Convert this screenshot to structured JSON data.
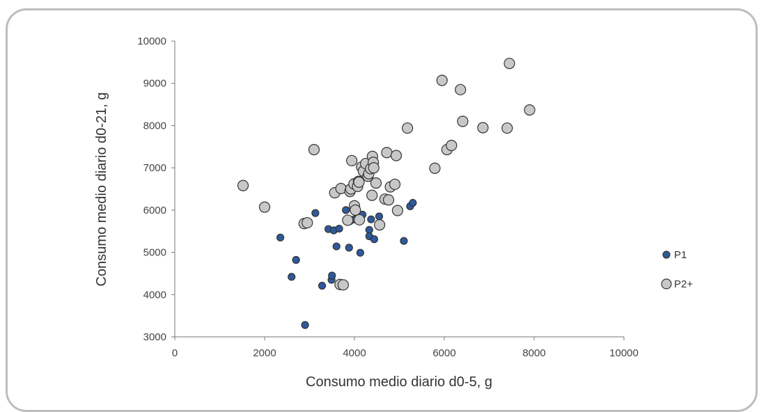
{
  "chart_data": {
    "type": "scatter",
    "title": "",
    "xlabel": "Consumo medio diario d0-5, g",
    "ylabel": "Consumo medio diario d0-21, g",
    "xlim": [
      0,
      10000
    ],
    "ylim": [
      3000,
      10000
    ],
    "xticks": [
      "0",
      "2000",
      "4000",
      "6000",
      "8000",
      "10000"
    ],
    "yticks": [
      "3000",
      "4000",
      "5000",
      "6000",
      "7000",
      "8000",
      "9000",
      "10000"
    ],
    "grid": false,
    "legend_position": "right",
    "series": [
      {
        "name": "P1",
        "color": "#2e5a9c",
        "points": [
          [
            2350,
            5350
          ],
          [
            2600,
            4420
          ],
          [
            2700,
            4820
          ],
          [
            2900,
            3280
          ],
          [
            3130,
            5930
          ],
          [
            3280,
            4210
          ],
          [
            3420,
            5550
          ],
          [
            3490,
            4350
          ],
          [
            3500,
            4450
          ],
          [
            3540,
            5520
          ],
          [
            3600,
            5140
          ],
          [
            3660,
            5560
          ],
          [
            3810,
            6000
          ],
          [
            3880,
            5110
          ],
          [
            3900,
            5740
          ],
          [
            4000,
            5780
          ],
          [
            4130,
            4990
          ],
          [
            4180,
            5890
          ],
          [
            4260,
            6800
          ],
          [
            4330,
            5530
          ],
          [
            4330,
            5380
          ],
          [
            4370,
            5780
          ],
          [
            4440,
            5310
          ],
          [
            4550,
            5850
          ],
          [
            5100,
            5270
          ],
          [
            5240,
            6090
          ],
          [
            5300,
            6170
          ]
        ]
      },
      {
        "name": "P2+",
        "color": "#c8c8c8",
        "points": [
          [
            1520,
            6580
          ],
          [
            2000,
            6070
          ],
          [
            2880,
            5680
          ],
          [
            2950,
            5700
          ],
          [
            3100,
            7430
          ],
          [
            3560,
            6410
          ],
          [
            3700,
            6510
          ],
          [
            3680,
            4240
          ],
          [
            3750,
            4230
          ],
          [
            3850,
            5760
          ],
          [
            3900,
            6440
          ],
          [
            3920,
            6500
          ],
          [
            3940,
            7170
          ],
          [
            3990,
            6620
          ],
          [
            4000,
            6100
          ],
          [
            4020,
            6000
          ],
          [
            4070,
            6560
          ],
          [
            4090,
            6680
          ],
          [
            4100,
            6660
          ],
          [
            4110,
            5770
          ],
          [
            4160,
            7020
          ],
          [
            4200,
            6920
          ],
          [
            4250,
            7100
          ],
          [
            4300,
            6800
          ],
          [
            4320,
            6860
          ],
          [
            4360,
            6980
          ],
          [
            4390,
            6350
          ],
          [
            4400,
            7270
          ],
          [
            4420,
            7130
          ],
          [
            4430,
            7000
          ],
          [
            4480,
            6640
          ],
          [
            4560,
            5650
          ],
          [
            4680,
            6260
          ],
          [
            4720,
            7360
          ],
          [
            4760,
            6240
          ],
          [
            4800,
            6550
          ],
          [
            4900,
            6610
          ],
          [
            4930,
            7290
          ],
          [
            4960,
            5990
          ],
          [
            5180,
            7940
          ],
          [
            5790,
            6990
          ],
          [
            5950,
            9070
          ],
          [
            6060,
            7430
          ],
          [
            6160,
            7530
          ],
          [
            6360,
            8850
          ],
          [
            6410,
            8100
          ],
          [
            6860,
            7950
          ],
          [
            7400,
            7940
          ],
          [
            7450,
            9470
          ],
          [
            7900,
            8370
          ]
        ]
      }
    ]
  }
}
